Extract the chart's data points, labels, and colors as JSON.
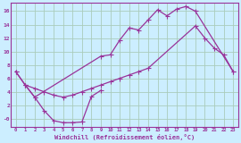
{
  "bg_color": "#cceeff",
  "grid_color": "#aaccbb",
  "line_color": "#993399",
  "xlabel": "Windchill (Refroidissement éolien,°C)",
  "xlim": [
    -0.5,
    23.5
  ],
  "ylim": [
    -1.2,
    17.2
  ],
  "xticks": [
    0,
    1,
    2,
    3,
    4,
    5,
    6,
    7,
    8,
    9,
    10,
    11,
    12,
    13,
    14,
    15,
    16,
    17,
    18,
    19,
    20,
    21,
    22,
    23
  ],
  "yticks": [
    0,
    2,
    4,
    6,
    8,
    10,
    12,
    14,
    16
  ],
  "ytick_labels": [
    "-0",
    "2",
    "4",
    "6",
    "8",
    "10",
    "12",
    "14",
    "16"
  ],
  "line1_x": [
    0,
    1,
    2,
    3,
    4,
    5,
    6,
    7,
    8,
    9
  ],
  "line1_y": [
    7,
    5,
    3.2,
    1.2,
    -0.3,
    -0.6,
    -0.6,
    -0.5,
    3.3,
    4.2
  ],
  "line2_x": [
    0,
    1,
    2,
    9,
    10,
    11,
    12,
    13,
    14,
    15,
    16,
    17,
    18,
    19,
    23
  ],
  "line2_y": [
    7,
    5,
    3.2,
    9.3,
    9.5,
    11.7,
    13.5,
    13.2,
    14.7,
    16.2,
    15.3,
    16.3,
    16.7,
    16.0,
    7.0
  ],
  "line3_x": [
    1,
    2,
    3,
    4,
    5,
    6,
    7,
    8,
    9,
    10,
    11,
    12,
    13,
    14,
    19,
    20,
    21,
    22,
    23
  ],
  "line3_y": [
    5.0,
    4.5,
    4.0,
    3.5,
    3.2,
    3.5,
    4.0,
    4.5,
    5.0,
    5.5,
    6.0,
    6.5,
    7.0,
    7.5,
    13.8,
    12.0,
    10.5,
    9.5,
    7.0
  ]
}
